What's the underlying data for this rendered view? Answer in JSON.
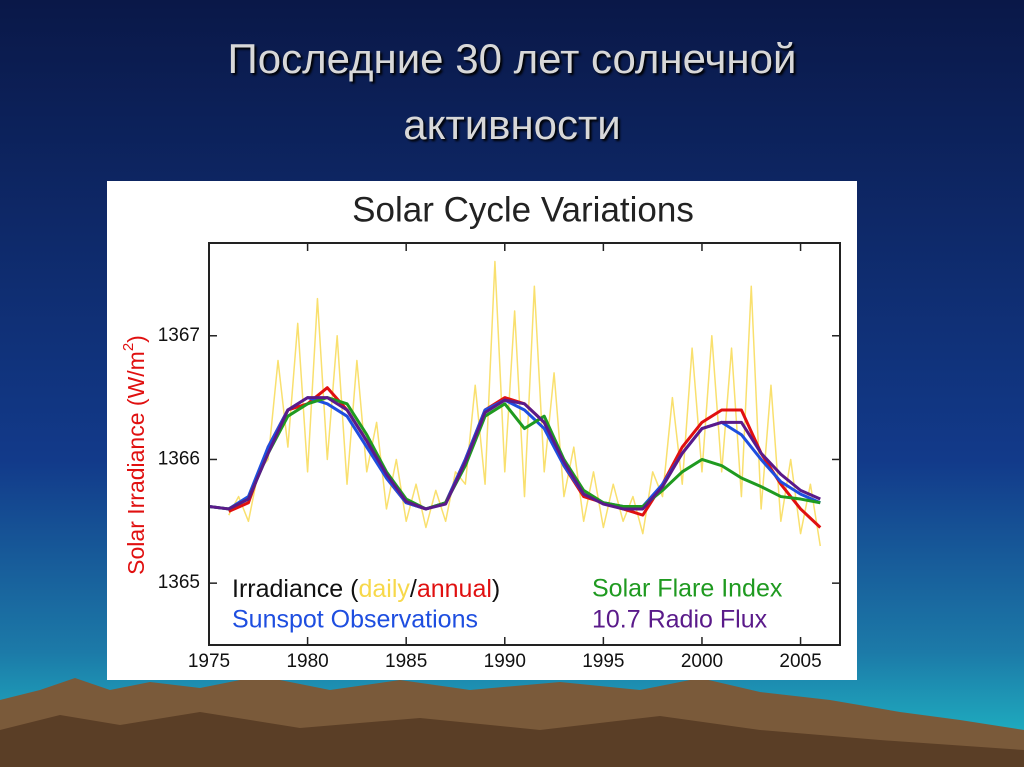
{
  "slide_title": [
    "Последние 30 лет солнечной",
    "активности"
  ],
  "chart_data": {
    "type": "line",
    "title": "Solar Cycle Variations",
    "y_label": {
      "text": "Solar Irradiance (W/m",
      "superscript": "2",
      "suffix": ")"
    },
    "irradiance_legend": {
      "prefix": "Irradiance (",
      "separator": "/",
      "suffix": ")"
    },
    "x": [
      1975,
      1976,
      1977,
      1978,
      1979,
      1980,
      1981,
      1982,
      1983,
      1984,
      1985,
      1986,
      1987,
      1988,
      1989,
      1990,
      1991,
      1992,
      1993,
      1994,
      1995,
      1996,
      1997,
      1998,
      1999,
      2000,
      2001,
      2002,
      2003,
      2004,
      2005,
      2006
    ],
    "xlim": [
      1975,
      2007
    ],
    "xticks": [
      1975,
      1980,
      1985,
      1990,
      1995,
      2000,
      2005
    ],
    "ylim": [
      1364.5,
      1367.75
    ],
    "yticks": [
      1365,
      1366,
      1367
    ],
    "series": [
      {
        "name": "daily",
        "color": "#f7d84a",
        "x": [
          1976,
          1976.5,
          1977,
          1977.5,
          1978,
          1978.5,
          1979,
          1979.5,
          1980,
          1980.5,
          1981,
          1981.5,
          1982,
          1982.5,
          1983,
          1983.5,
          1984,
          1984.5,
          1985,
          1985.5,
          1986,
          1986.5,
          1987,
          1987.5,
          1988,
          1988.5,
          1989,
          1989.5,
          1990,
          1990.5,
          1991,
          1991.5,
          1992,
          1992.5,
          1993,
          1993.5,
          1994,
          1994.5,
          1995,
          1995.5,
          1996,
          1996.5,
          1997,
          1997.5,
          1998,
          1998.5,
          1999,
          1999.5,
          2000,
          2000.5,
          2001,
          2001.5,
          2002,
          2002.5,
          2003,
          2003.5,
          2004,
          2004.5,
          2005,
          2005.5,
          2006
        ],
        "values": [
          1365.55,
          1365.7,
          1365.5,
          1365.9,
          1366.0,
          1366.8,
          1366.1,
          1367.1,
          1365.9,
          1367.3,
          1366.0,
          1367.0,
          1365.8,
          1366.8,
          1365.9,
          1366.3,
          1365.6,
          1366.0,
          1365.5,
          1365.8,
          1365.45,
          1365.75,
          1365.5,
          1365.9,
          1365.8,
          1366.6,
          1365.8,
          1367.6,
          1365.9,
          1367.2,
          1365.7,
          1367.4,
          1365.9,
          1366.7,
          1365.7,
          1366.1,
          1365.5,
          1365.9,
          1365.45,
          1365.8,
          1365.5,
          1365.7,
          1365.4,
          1365.9,
          1365.7,
          1366.5,
          1365.8,
          1366.9,
          1365.9,
          1367.0,
          1365.9,
          1366.9,
          1365.7,
          1367.4,
          1365.6,
          1366.6,
          1365.5,
          1366.0,
          1365.4,
          1365.8,
          1365.3
        ]
      },
      {
        "name": "annual",
        "color": "#e01010",
        "values": [
          null,
          1365.58,
          1365.65,
          1366.1,
          1366.4,
          1366.45,
          1366.58,
          1366.4,
          1366.15,
          1365.85,
          1365.65,
          1365.6,
          1365.65,
          1366.0,
          1366.4,
          1366.5,
          1366.45,
          1366.3,
          1365.95,
          1365.7,
          1365.65,
          1365.6,
          1365.55,
          1365.8,
          1366.1,
          1366.3,
          1366.4,
          1366.4,
          1366.05,
          1365.8,
          1365.6,
          1365.45
        ]
      },
      {
        "name": "Sunspot Observations",
        "color": "#1e4ee0",
        "values": [
          1365.62,
          1365.6,
          1365.7,
          1366.1,
          1366.4,
          1366.5,
          1366.45,
          1366.35,
          1366.1,
          1365.85,
          1365.65,
          1365.6,
          1365.65,
          1366.0,
          1366.4,
          1366.48,
          1366.4,
          1366.25,
          1365.95,
          1365.72,
          1365.65,
          1365.62,
          1365.62,
          1365.8,
          1366.05,
          1366.25,
          1366.3,
          1366.2,
          1366.0,
          1365.82,
          1365.72,
          1365.65
        ]
      },
      {
        "name": "Solar Flare Index",
        "color": "#1f9a20",
        "values": [
          1365.62,
          1365.6,
          1365.68,
          1366.05,
          1366.35,
          1366.45,
          1366.5,
          1366.45,
          1366.2,
          1365.9,
          1365.68,
          1365.6,
          1365.65,
          1365.95,
          1366.35,
          1366.45,
          1366.25,
          1366.35,
          1366.0,
          1365.75,
          1365.65,
          1365.62,
          1365.62,
          1365.75,
          1365.9,
          1366.0,
          1365.95,
          1365.85,
          1365.78,
          1365.7,
          1365.68,
          1365.65
        ]
      },
      {
        "name": "10.7 Radio Flux",
        "color": "#5a1a8a",
        "values": [
          1365.62,
          1365.6,
          1365.68,
          1366.05,
          1366.4,
          1366.5,
          1366.5,
          1366.4,
          1366.15,
          1365.88,
          1365.66,
          1365.6,
          1365.64,
          1365.98,
          1366.38,
          1366.48,
          1366.45,
          1366.3,
          1365.98,
          1365.72,
          1365.64,
          1365.6,
          1365.6,
          1365.78,
          1366.05,
          1366.25,
          1366.3,
          1366.3,
          1366.05,
          1365.88,
          1365.75,
          1365.68
        ]
      }
    ]
  }
}
